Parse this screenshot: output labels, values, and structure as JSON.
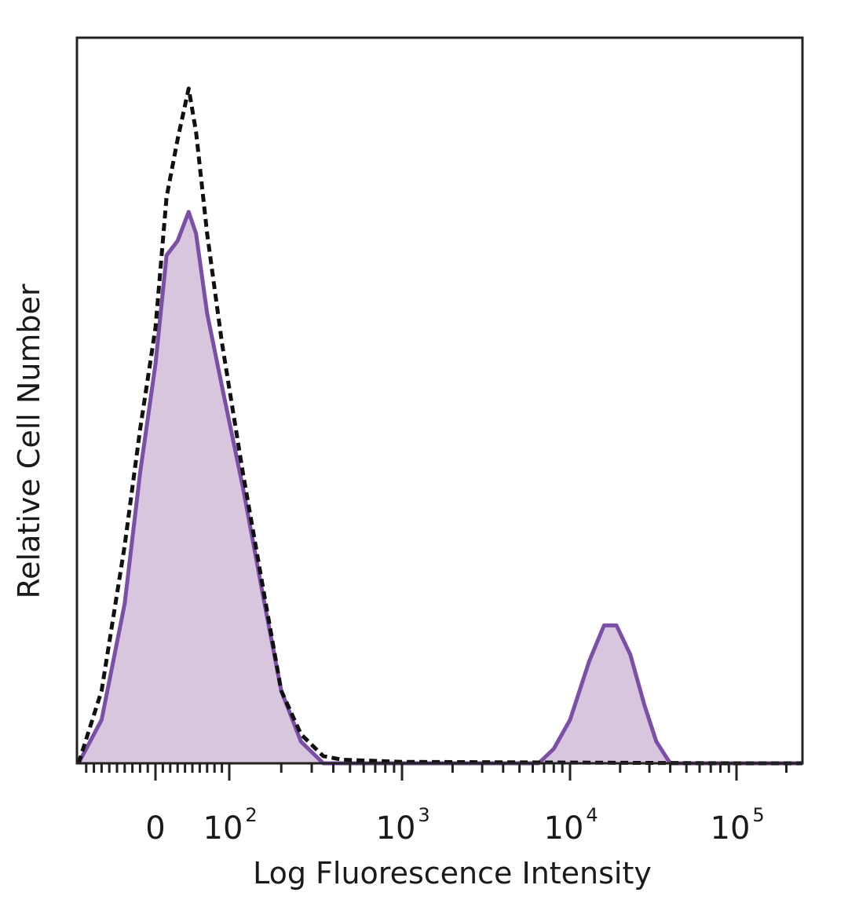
{
  "chart_data": {
    "type": "area",
    "xlabel": "Log Fluorescence Intensity",
    "ylabel": "Relative Cell Number",
    "x_scale": "biexponential",
    "xlim": [
      -100,
      250000
    ],
    "ylim": [
      0,
      1.0
    ],
    "grid": false,
    "x_ticks": [
      {
        "value": 0,
        "base": "0",
        "exp": ""
      },
      {
        "value": 100,
        "base": "10",
        "exp": "2"
      },
      {
        "value": 1000,
        "base": "10",
        "exp": "3"
      },
      {
        "value": 10000,
        "base": "10",
        "exp": "4"
      },
      {
        "value": 100000,
        "base": "10",
        "exp": "5"
      }
    ],
    "series": [
      {
        "style": "filled",
        "color": "#7b4fa6",
        "fill": "#d8c6df",
        "points": [
          [
            -100,
            0.0
          ],
          [
            -70,
            0.06
          ],
          [
            -40,
            0.22
          ],
          [
            -20,
            0.4
          ],
          [
            0,
            0.55
          ],
          [
            15,
            0.7
          ],
          [
            30,
            0.72
          ],
          [
            45,
            0.76
          ],
          [
            55,
            0.73
          ],
          [
            70,
            0.62
          ],
          [
            90,
            0.52
          ],
          [
            120,
            0.38
          ],
          [
            160,
            0.22
          ],
          [
            200,
            0.1
          ],
          [
            260,
            0.03
          ],
          [
            350,
            0.0
          ],
          [
            6500,
            0.0
          ],
          [
            8000,
            0.02
          ],
          [
            10000,
            0.06
          ],
          [
            13000,
            0.14
          ],
          [
            16000,
            0.19
          ],
          [
            19000,
            0.19
          ],
          [
            23000,
            0.15
          ],
          [
            28000,
            0.08
          ],
          [
            33000,
            0.03
          ],
          [
            40000,
            0.0
          ],
          [
            250000,
            0.0
          ]
        ]
      },
      {
        "style": "dashed",
        "color": "#111111",
        "points": [
          [
            -100,
            0.0
          ],
          [
            -70,
            0.1
          ],
          [
            -40,
            0.3
          ],
          [
            -20,
            0.46
          ],
          [
            0,
            0.6
          ],
          [
            15,
            0.78
          ],
          [
            30,
            0.86
          ],
          [
            45,
            0.93
          ],
          [
            55,
            0.87
          ],
          [
            70,
            0.73
          ],
          [
            90,
            0.58
          ],
          [
            120,
            0.4
          ],
          [
            160,
            0.23
          ],
          [
            200,
            0.1
          ],
          [
            260,
            0.04
          ],
          [
            350,
            0.01
          ],
          [
            450,
            0.005
          ],
          [
            1000,
            0.002
          ],
          [
            10000,
            0.001
          ],
          [
            100000,
            0.0
          ],
          [
            250000,
            0.0
          ]
        ]
      }
    ]
  }
}
